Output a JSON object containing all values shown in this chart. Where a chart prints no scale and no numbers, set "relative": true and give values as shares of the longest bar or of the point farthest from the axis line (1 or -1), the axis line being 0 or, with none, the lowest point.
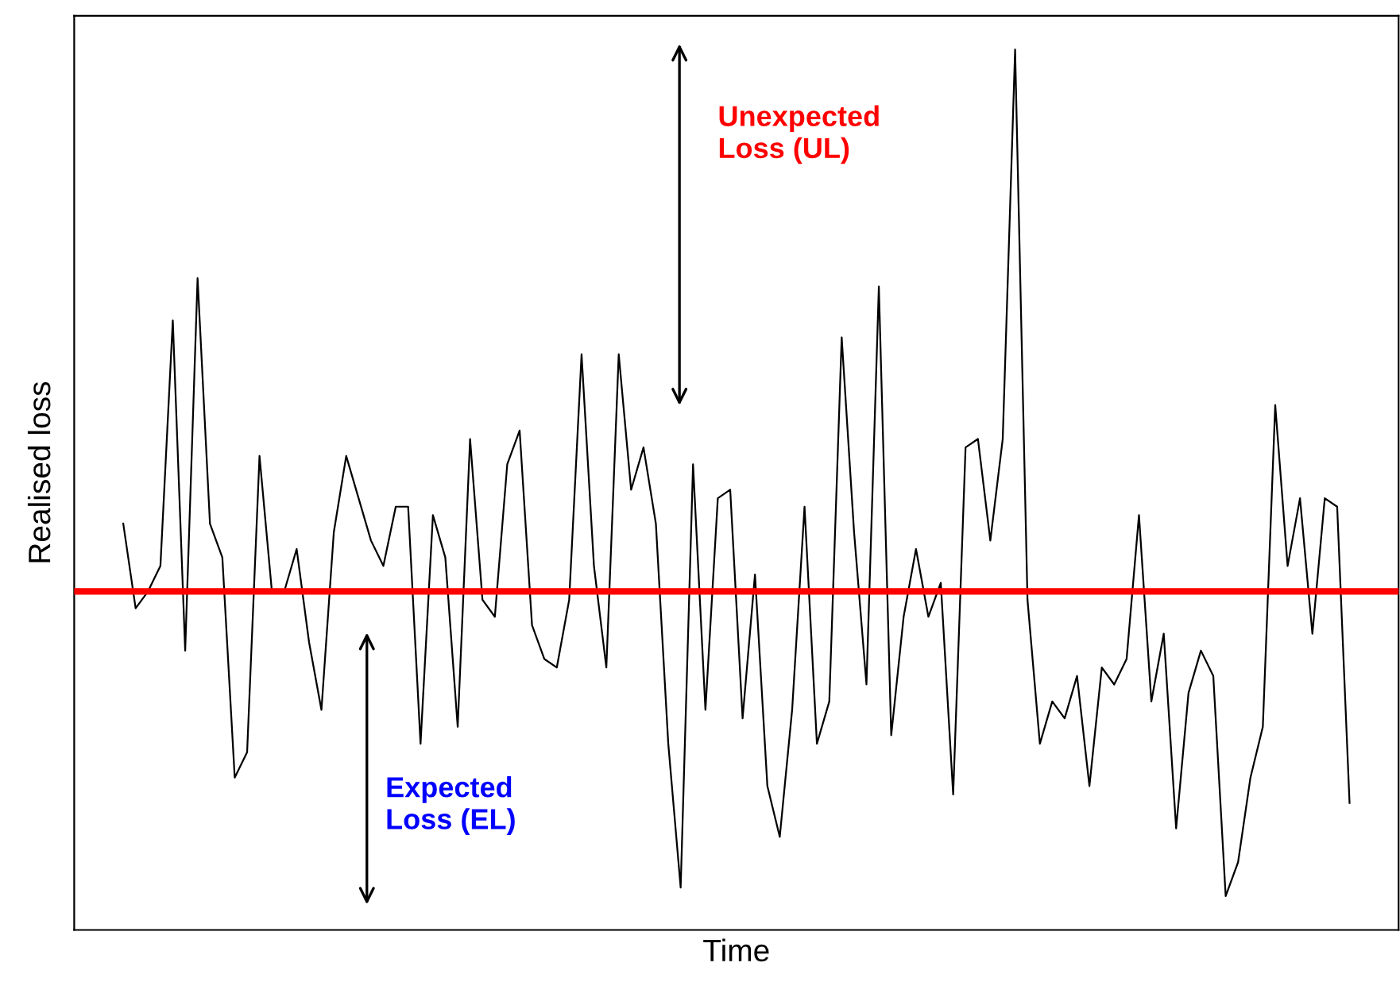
{
  "chart_data": {
    "type": "line",
    "relative": true,
    "xlabel": "Time",
    "ylabel": "Realised loss",
    "line_style": "solid",
    "tick_labels": false,
    "categories": [
      null,
      null,
      null,
      null,
      null,
      null,
      null,
      null,
      null,
      null,
      null,
      null,
      null,
      null,
      null,
      null,
      null,
      null,
      null,
      null,
      null,
      null,
      null,
      null,
      null,
      null,
      null,
      null,
      null,
      null,
      null,
      null,
      null,
      null,
      null,
      null,
      null,
      null,
      null,
      null,
      null,
      null,
      null,
      null,
      null,
      null,
      null,
      null,
      null,
      null,
      null,
      null,
      null,
      null,
      null,
      null,
      null,
      null,
      null,
      null,
      null,
      null,
      null,
      null,
      null,
      null,
      null,
      null,
      null,
      null,
      null,
      null,
      null,
      null,
      null,
      null,
      null,
      null,
      null,
      null,
      null,
      null,
      null,
      null,
      null,
      null,
      null,
      null,
      null,
      null,
      null,
      null,
      null,
      null,
      null,
      null,
      null,
      null,
      null,
      null
    ],
    "series": [
      {
        "color": "#000000",
        "values": [
          0.44,
          0.34,
          0.36,
          0.39,
          0.68,
          0.29,
          0.73,
          0.44,
          0.4,
          0.14,
          0.17,
          0.52,
          0.36,
          0.36,
          0.41,
          0.3,
          0.22,
          0.43,
          0.52,
          0.47,
          0.42,
          0.39,
          0.46,
          0.46,
          0.18,
          0.45,
          0.4,
          0.2,
          0.54,
          0.35,
          0.33,
          0.51,
          0.55,
          0.32,
          0.28,
          0.27,
          0.35,
          0.64,
          0.39,
          0.27,
          0.64,
          0.48,
          0.53,
          0.44,
          0.18,
          0.01,
          0.51,
          0.22,
          0.47,
          0.48,
          0.21,
          0.38,
          0.13,
          0.07,
          0.22,
          0.46,
          0.18,
          0.23,
          0.66,
          0.43,
          0.25,
          0.72,
          0.19,
          0.33,
          0.41,
          0.33,
          0.37,
          0.12,
          0.53,
          0.54,
          0.42,
          0.54,
          1.0,
          0.35,
          0.18,
          0.23,
          0.21,
          0.26,
          0.13,
          0.27,
          0.25,
          0.28,
          0.45,
          0.23,
          0.31,
          0.08,
          0.24,
          0.29,
          0.26,
          0.0,
          0.04,
          0.14,
          0.2,
          0.58,
          0.39,
          0.47,
          0.31,
          0.47,
          0.46,
          0.11
        ]
      }
    ],
    "ref_lines": [
      {
        "axis": "y",
        "value": 0.36,
        "color": "#ff0000",
        "line_style": "solid"
      }
    ],
    "annotations": [
      "Unexpected\nLoss (UL)",
      "Expected\nLoss (EL)"
    ]
  }
}
